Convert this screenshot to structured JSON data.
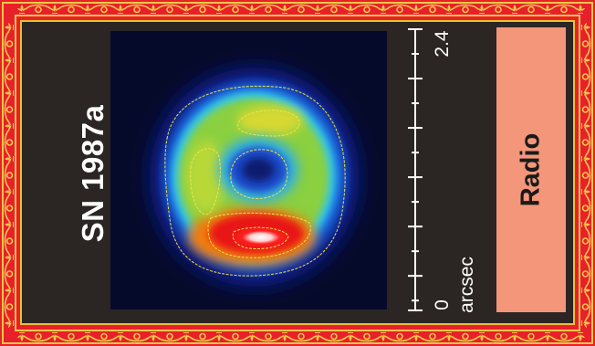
{
  "title": "SN 1987a",
  "band_label": "Radio",
  "scale": {
    "unit": "arcsec",
    "min_label": "0",
    "max_label": "2.4"
  },
  "colors": {
    "border_red": "#e8202a",
    "ornament_gold": "#f2c64a",
    "panel_dark": "#2b2523",
    "band_salmon": "#f4967a"
  }
}
